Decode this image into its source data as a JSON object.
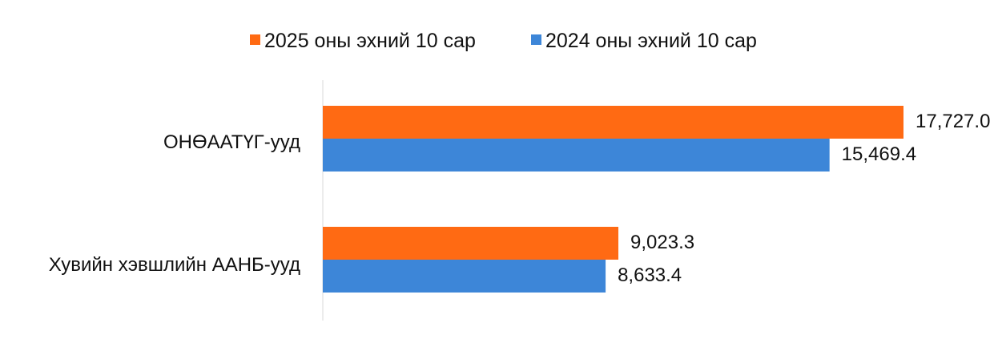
{
  "colors": {
    "series_2025": "#FF6A13",
    "series_2024": "#3D86D8",
    "axis": "#D9D9D9",
    "text": "#111111"
  },
  "chart_data": {
    "type": "bar",
    "orientation": "horizontal",
    "categories": [
      "ОНӨААТҮГ-ууд",
      "Хувийн хэвшлийн ААНБ-ууд"
    ],
    "series": [
      {
        "name": "2025 оны эхний 10 сар",
        "values": [
          17727.0,
          9023.3
        ],
        "labels": [
          "17,727.0",
          "9,023.3"
        ]
      },
      {
        "name": "2024 оны эхний 10 сар",
        "values": [
          15469.4,
          8633.4
        ],
        "labels": [
          "15,469.4",
          "8,633.4"
        ]
      }
    ],
    "xlim": [
      0,
      20000
    ],
    "grid": false,
    "legend_position": "top"
  }
}
